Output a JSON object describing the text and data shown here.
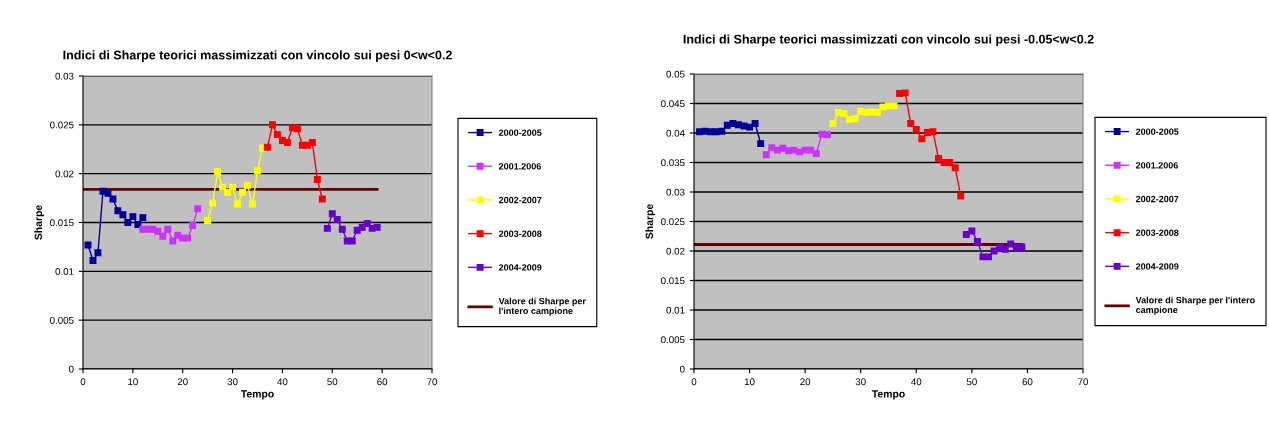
{
  "chart_data": [
    {
      "type": "line",
      "title": "Indici di Sharpe teorici massimizzati con vincolo sui pesi 0<w<0.2",
      "xlabel": "Tempo",
      "ylabel": "Sharpe",
      "xlim": [
        0,
        70
      ],
      "xticks": [
        0,
        10,
        20,
        30,
        40,
        50,
        60,
        70
      ],
      "ylim": [
        0,
        0.03
      ],
      "yticks": [
        0,
        0.005,
        0.01,
        0.015,
        0.02,
        0.025,
        0.03
      ],
      "grid": "y",
      "legend": "right",
      "marker": "square",
      "series": [
        {
          "name": "2000-2005",
          "color": "#000099",
          "x": [
            1,
            2,
            3,
            4,
            5,
            6,
            7,
            8,
            9,
            10,
            11,
            12
          ],
          "values": [
            0.0127,
            0.0111,
            0.0119,
            0.0182,
            0.018,
            0.0174,
            0.0162,
            0.0158,
            0.015,
            0.0156,
            0.0148,
            0.0155
          ]
        },
        {
          "name": "2001.2006",
          "color": "#cc33ff",
          "x": [
            12,
            13,
            14,
            15,
            16,
            17,
            18,
            19,
            20,
            21,
            22,
            23
          ],
          "values": [
            0.0143,
            0.0143,
            0.0143,
            0.0141,
            0.0136,
            0.0143,
            0.0131,
            0.0137,
            0.0134,
            0.0134,
            0.0147,
            0.0164
          ]
        },
        {
          "name": "2002-2007",
          "color": "#ffff00",
          "x": [
            25,
            26,
            27,
            28,
            29,
            30,
            31,
            32,
            33,
            34,
            35,
            36
          ],
          "values": [
            0.0152,
            0.017,
            0.0202,
            0.0186,
            0.0181,
            0.0186,
            0.0169,
            0.0181,
            0.0188,
            0.0169,
            0.0203,
            0.0226
          ]
        },
        {
          "name": "2003-2008",
          "color": "#ff0000",
          "x": [
            37,
            38,
            39,
            40,
            41,
            42,
            43,
            44,
            45,
            46,
            47,
            48
          ],
          "values": [
            0.0227,
            0.025,
            0.024,
            0.0234,
            0.0232,
            0.0247,
            0.0246,
            0.0229,
            0.0229,
            0.0232,
            0.0194,
            0.0174
          ]
        },
        {
          "name": "2004-2009",
          "color": "#6600cc",
          "x": [
            49,
            50,
            51,
            52,
            53,
            54,
            55,
            56,
            57,
            58,
            59
          ],
          "values": [
            0.0144,
            0.0159,
            0.0153,
            0.0143,
            0.0131,
            0.0131,
            0.0142,
            0.0145,
            0.0149,
            0.0144,
            0.0145
          ]
        },
        {
          "name": "Valore di Sharpe per l'intero campione",
          "color": "#660000",
          "marker": "none",
          "x": [
            0,
            59
          ],
          "values": [
            0.0184,
            0.0184
          ]
        }
      ]
    },
    {
      "type": "line",
      "title": "Indici di Sharpe teorici massimizzati con vincolo sui pesi -0.05<w<0.2",
      "xlabel": "Tempo",
      "ylabel": "Sharpe",
      "xlim": [
        0,
        70
      ],
      "xticks": [
        0,
        10,
        20,
        30,
        40,
        50,
        60,
        70
      ],
      "ylim": [
        0,
        0.05
      ],
      "yticks": [
        0,
        0.005,
        0.01,
        0.015,
        0.02,
        0.025,
        0.03,
        0.035,
        0.04,
        0.045,
        0.05
      ],
      "grid": "y",
      "legend": "right",
      "marker": "square",
      "series": [
        {
          "name": "2000-2005",
          "color": "#000099",
          "x": [
            1,
            2,
            3,
            4,
            5,
            6,
            7,
            8,
            9,
            10,
            11,
            12
          ],
          "values": [
            0.0402,
            0.0403,
            0.0402,
            0.0402,
            0.0403,
            0.0413,
            0.0416,
            0.0414,
            0.0412,
            0.041,
            0.0416,
            0.0382
          ]
        },
        {
          "name": "2001.2006",
          "color": "#cc33ff",
          "x": [
            13,
            14,
            15,
            16,
            17,
            18,
            19,
            20,
            21,
            22,
            23,
            24
          ],
          "values": [
            0.0363,
            0.0375,
            0.0371,
            0.0374,
            0.037,
            0.0371,
            0.0368,
            0.0371,
            0.0371,
            0.0365,
            0.0398,
            0.0397
          ]
        },
        {
          "name": "2002-2007",
          "color": "#ffff00",
          "x": [
            25,
            26,
            27,
            28,
            29,
            30,
            31,
            32,
            33,
            34,
            35,
            36
          ],
          "values": [
            0.0416,
            0.0435,
            0.0433,
            0.0423,
            0.0424,
            0.0437,
            0.0435,
            0.0436,
            0.0435,
            0.0444,
            0.0446,
            0.0446
          ]
        },
        {
          "name": "2003-2008",
          "color": "#ff0000",
          "x": [
            37,
            38,
            39,
            40,
            41,
            42,
            43,
            44,
            45,
            46,
            47,
            48
          ],
          "values": [
            0.0467,
            0.0468,
            0.0416,
            0.0406,
            0.039,
            0.0401,
            0.0402,
            0.0357,
            0.035,
            0.035,
            0.0341,
            0.0293
          ]
        },
        {
          "name": "2004-2009",
          "color": "#6600cc",
          "x": [
            49,
            50,
            51,
            52,
            53,
            54,
            55,
            56,
            57,
            58,
            59
          ],
          "values": [
            0.0228,
            0.0234,
            0.0216,
            0.019,
            0.019,
            0.02,
            0.0206,
            0.0203,
            0.0212,
            0.0206,
            0.0207
          ]
        },
        {
          "name": "Valore di Sharpe per l'intero campione",
          "color": "#660000",
          "marker": "none",
          "x": [
            0,
            59
          ],
          "values": [
            0.0211,
            0.0211
          ]
        }
      ]
    }
  ]
}
